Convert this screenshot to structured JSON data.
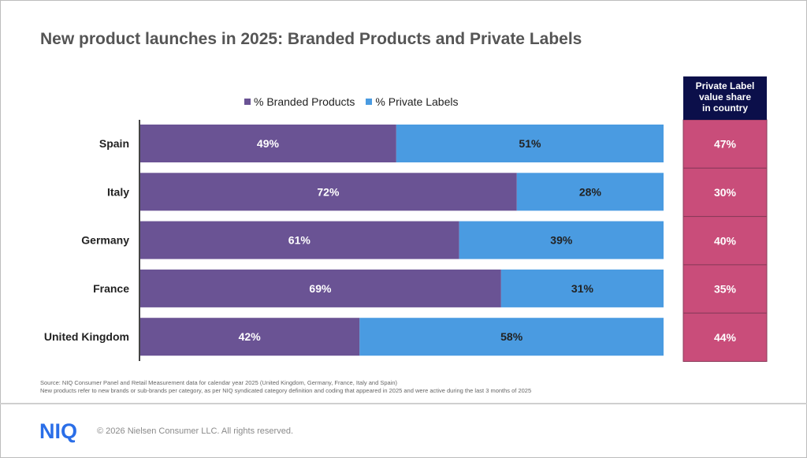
{
  "chart_data": {
    "type": "bar",
    "orientation": "horizontal",
    "stacked": true,
    "percent_stacked": true,
    "title": "New product launches in 2025: Branded Products and Private Labels",
    "categories": [
      "Spain",
      "Italy",
      "Germany",
      "France",
      "United Kingdom"
    ],
    "series": [
      {
        "name": "% Branded Products",
        "values": [
          49,
          72,
          61,
          69,
          42
        ],
        "labels": [
          "49%",
          "72%",
          "61%",
          "69%",
          "42%"
        ],
        "color": "#6a5394"
      },
      {
        "name": "% Private Labels",
        "values": [
          51,
          28,
          39,
          31,
          58
        ],
        "labels": [
          "51%",
          "28%",
          "39%",
          "31%",
          "58%"
        ],
        "color": "#4a9be1"
      }
    ],
    "legend_position": "top",
    "grid": false,
    "side_table": {
      "header": "Private Label value share in country",
      "header_lines": [
        "Private Label",
        "value share",
        "in country"
      ],
      "values": [
        "47%",
        "30%",
        "40%",
        "35%",
        "44%"
      ],
      "header_color": "#0b0f4a",
      "cell_color": "#c94d7a"
    }
  },
  "source_lines": [
    "Source: NIQ Consumer Panel and Retail Measurement data for calendar year 2025 (United Kingdom, Germany, France, Italy and Spain)",
    "New products refer to new brands or sub-brands per category, as per NIQ syndicated category definition and coding that appeared in 2025 and were active during the last 3 months of 2025"
  ],
  "footer": {
    "logo": "NIQ",
    "copyright": "© 2026 Nielsen Consumer LLC. All rights reserved."
  }
}
